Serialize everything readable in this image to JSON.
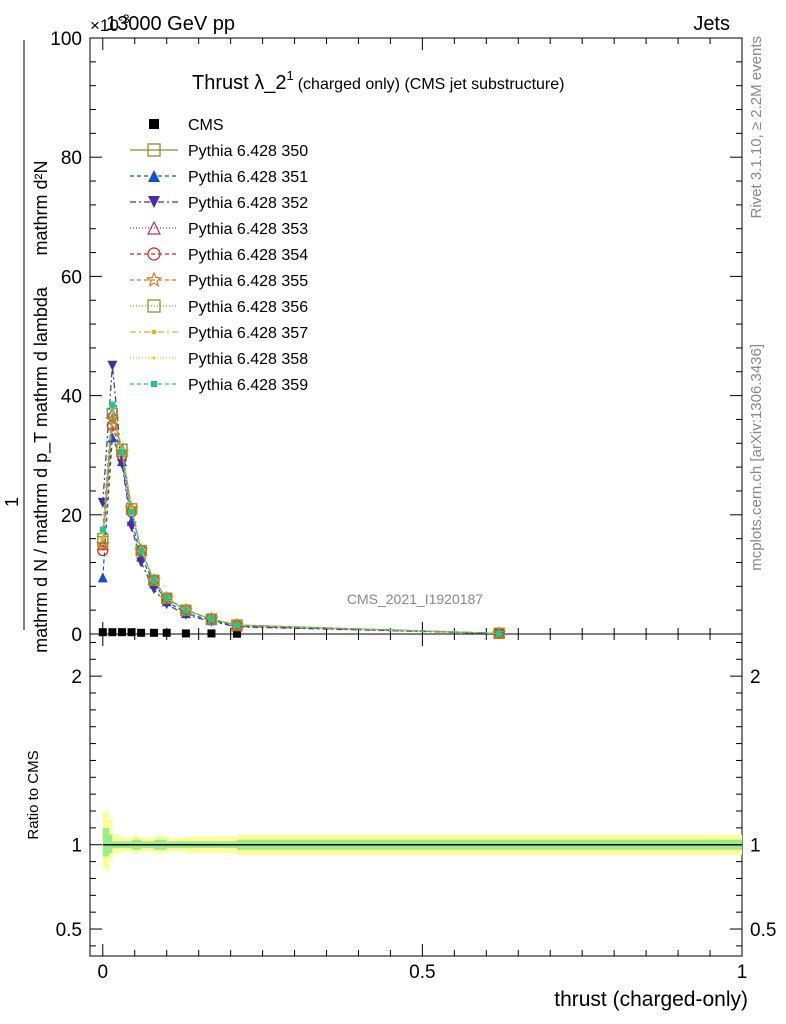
{
  "header": {
    "left": "13000 GeV pp",
    "right": "Jets",
    "multiplier": "×10",
    "multiplier_exp": "-3"
  },
  "side_labels": {
    "rivet": "Rivet 3.1.10, ≥ 2.2M events",
    "mcplots": "mcplots.cern.ch [arXiv:1306.3436]"
  },
  "chart_data": [
    {
      "type": "line",
      "panel": "main",
      "title_main": "Thrust λ_2",
      "title_sup": "1",
      "title_rest": "(charged only) (CMS jet substructure)",
      "watermark": "CMS_2021_I1920187",
      "ylabel_numerator": "1",
      "ylabel_denominator": "mathrm d N / mathrm d p_T mathrm d lambda",
      "ylabel_top": "mathrm d²N",
      "xlabel": "thrust (charged-only)",
      "xlim": [
        -0.02,
        1.0
      ],
      "ylim": [
        0,
        100
      ],
      "y_ticks": [
        "0",
        "20",
        "40",
        "60",
        "80",
        "100"
      ],
      "grid": false,
      "legend_position": "top-left",
      "x": [
        0.0,
        0.015,
        0.03,
        0.045,
        0.06,
        0.08,
        0.1,
        0.13,
        0.17,
        0.21,
        0.62
      ],
      "series": [
        {
          "name": "CMS",
          "color": "#000000",
          "marker": "square-filled",
          "dash": "none",
          "values": [
            0.3,
            0.3,
            0.3,
            0.3,
            0.2,
            0.2,
            0.2,
            0.1,
            0.1,
            0.05,
            0.0
          ]
        },
        {
          "name": "Pythia 6.428 350",
          "color": "#8e8e2a",
          "marker": "square-open",
          "dash": "solid",
          "values": [
            16,
            37,
            31,
            21,
            14,
            9,
            6,
            4,
            2.5,
            1.5,
            0.1
          ]
        },
        {
          "name": "Pythia 6.428 351",
          "color": "#1450c8",
          "marker": "triangle-up-filled",
          "dash": "4,3",
          "values": [
            9.5,
            33,
            29,
            19,
            13,
            8.5,
            5.5,
            3.5,
            2.3,
            1.3,
            0.1
          ]
        },
        {
          "name": "Pythia 6.428 352",
          "color": "#4a2aa8",
          "marker": "triangle-down-filled",
          "dash": "6,3,2,3",
          "values": [
            22,
            45,
            28.5,
            18,
            12,
            7.5,
            5,
            3.2,
            2.1,
            1.2,
            0.1
          ]
        },
        {
          "name": "Pythia 6.428 353",
          "color": "#c2307a",
          "marker": "triangle-up-open",
          "dash": "1,2",
          "values": [
            15,
            37,
            31,
            21,
            14,
            9,
            6,
            4,
            2.5,
            1.4,
            0.1
          ]
        },
        {
          "name": "Pythia 6.428 354",
          "color": "#e0201a",
          "marker": "circle-open",
          "dash": "4,3",
          "values": [
            14,
            35,
            30,
            20.5,
            14,
            9,
            6,
            4,
            2.5,
            1.4,
            0.1
          ]
        },
        {
          "name": "Pythia 6.428 355",
          "color": "#f07020",
          "marker": "star-open",
          "dash": "4,3",
          "values": [
            15,
            36,
            30.5,
            21,
            14,
            9,
            6,
            4,
            2.5,
            1.5,
            0.1
          ]
        },
        {
          "name": "Pythia 6.428 356",
          "color": "#8a9a20",
          "marker": "square-open",
          "dash": "1,2",
          "values": [
            15.5,
            37,
            31,
            21,
            14,
            9,
            6,
            4,
            2.5,
            1.5,
            0.1
          ]
        },
        {
          "name": "Pythia 6.428 357",
          "color": "#d8b820",
          "marker": "dot",
          "dash": "6,3,2,3",
          "values": [
            16,
            38,
            31,
            21,
            14,
            9,
            6,
            4,
            2.5,
            1.5,
            0.1
          ]
        },
        {
          "name": "Pythia 6.428 358",
          "color": "#c8e020",
          "marker": "dot-small",
          "dash": "1,2",
          "values": [
            17,
            38.5,
            31,
            21,
            14,
            9,
            6,
            4,
            2.5,
            1.5,
            0.1
          ]
        },
        {
          "name": "Pythia 6.428 359",
          "color": "#20c890",
          "marker": "square-filled-small",
          "dash": "4,3",
          "values": [
            17.5,
            38.5,
            30.5,
            20.5,
            14,
            9,
            6,
            4,
            2.5,
            1.5,
            0.1
          ]
        }
      ]
    },
    {
      "type": "line",
      "panel": "ratio",
      "ylabel": "Ratio to CMS",
      "xlabel": "thrust (charged-only)",
      "xlim": [
        -0.02,
        1.0
      ],
      "ylim": [
        0.34,
        2.25
      ],
      "y_ticks": [
        "0.5",
        "1",
        "2"
      ],
      "x_ticks": [
        "0",
        "0.5",
        "1"
      ],
      "reference": 1.0,
      "band_yellow": {
        "x": [
          0.0,
          0.01,
          0.015,
          0.03,
          0.045,
          0.06,
          0.08,
          0.1,
          0.13,
          0.17,
          0.21,
          1.0
        ],
        "lo": [
          0.85,
          0.9,
          0.95,
          0.96,
          0.95,
          0.96,
          0.95,
          0.96,
          0.95,
          0.95,
          0.94,
          0.94
        ],
        "hi": [
          1.2,
          1.15,
          1.06,
          1.04,
          1.05,
          1.04,
          1.05,
          1.04,
          1.05,
          1.05,
          1.06,
          1.06
        ]
      },
      "band_green": {
        "x": [
          0.0,
          0.01,
          0.015,
          0.03,
          0.045,
          0.06,
          0.08,
          0.1,
          0.13,
          0.17,
          0.21,
          1.0
        ],
        "lo": [
          0.93,
          0.95,
          0.98,
          0.98,
          0.97,
          0.98,
          0.97,
          0.98,
          0.98,
          0.98,
          0.97,
          0.97
        ],
        "hi": [
          1.1,
          1.06,
          1.02,
          1.02,
          1.03,
          1.02,
          1.03,
          1.02,
          1.02,
          1.02,
          1.03,
          1.03
        ]
      }
    }
  ]
}
